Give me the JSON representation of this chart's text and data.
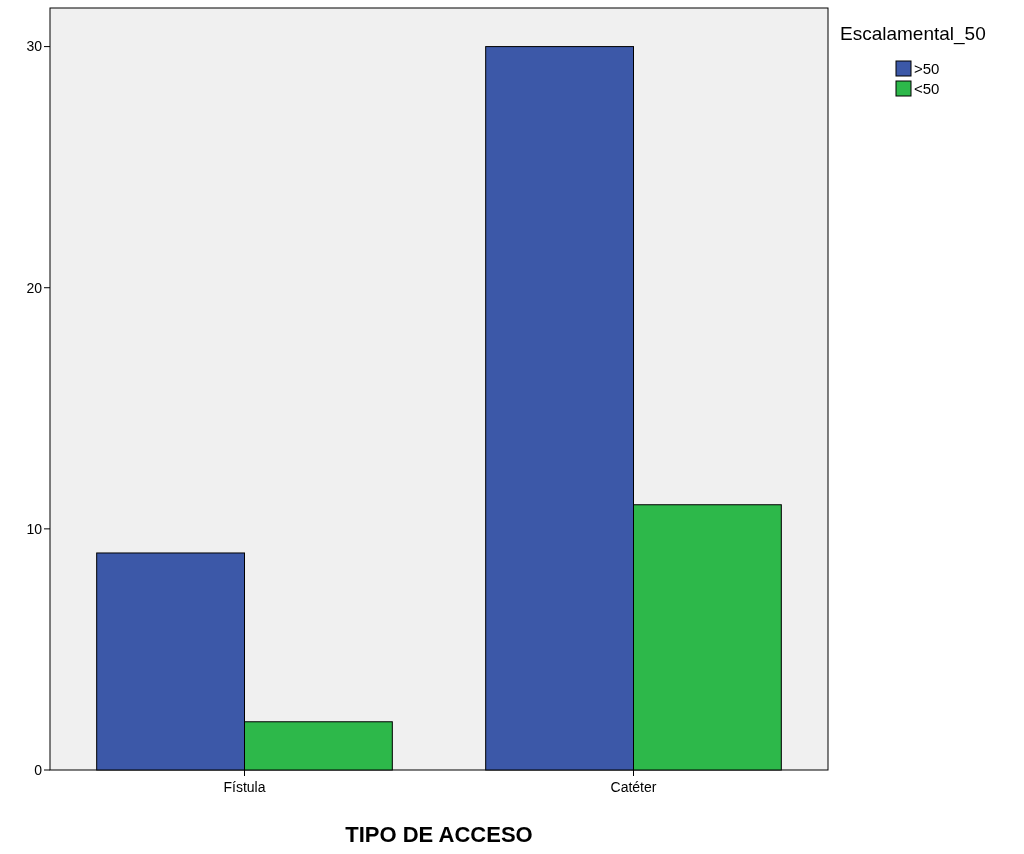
{
  "chart_data": {
    "type": "bar",
    "xlabel": "TIPO DE ACCESO",
    "legend_title": "Escalamental_50",
    "categories": [
      "Fístula",
      "Catéter"
    ],
    "series": [
      {
        "name": ">50",
        "color": "#3c58a8",
        "values": [
          9,
          30
        ]
      },
      {
        "name": "<50",
        "color": "#2db84a",
        "values": [
          2,
          11
        ]
      }
    ],
    "ylim": [
      0,
      31.6
    ],
    "yticks": [
      0,
      10,
      20,
      30
    ],
    "grid": false,
    "legend": "top right"
  }
}
